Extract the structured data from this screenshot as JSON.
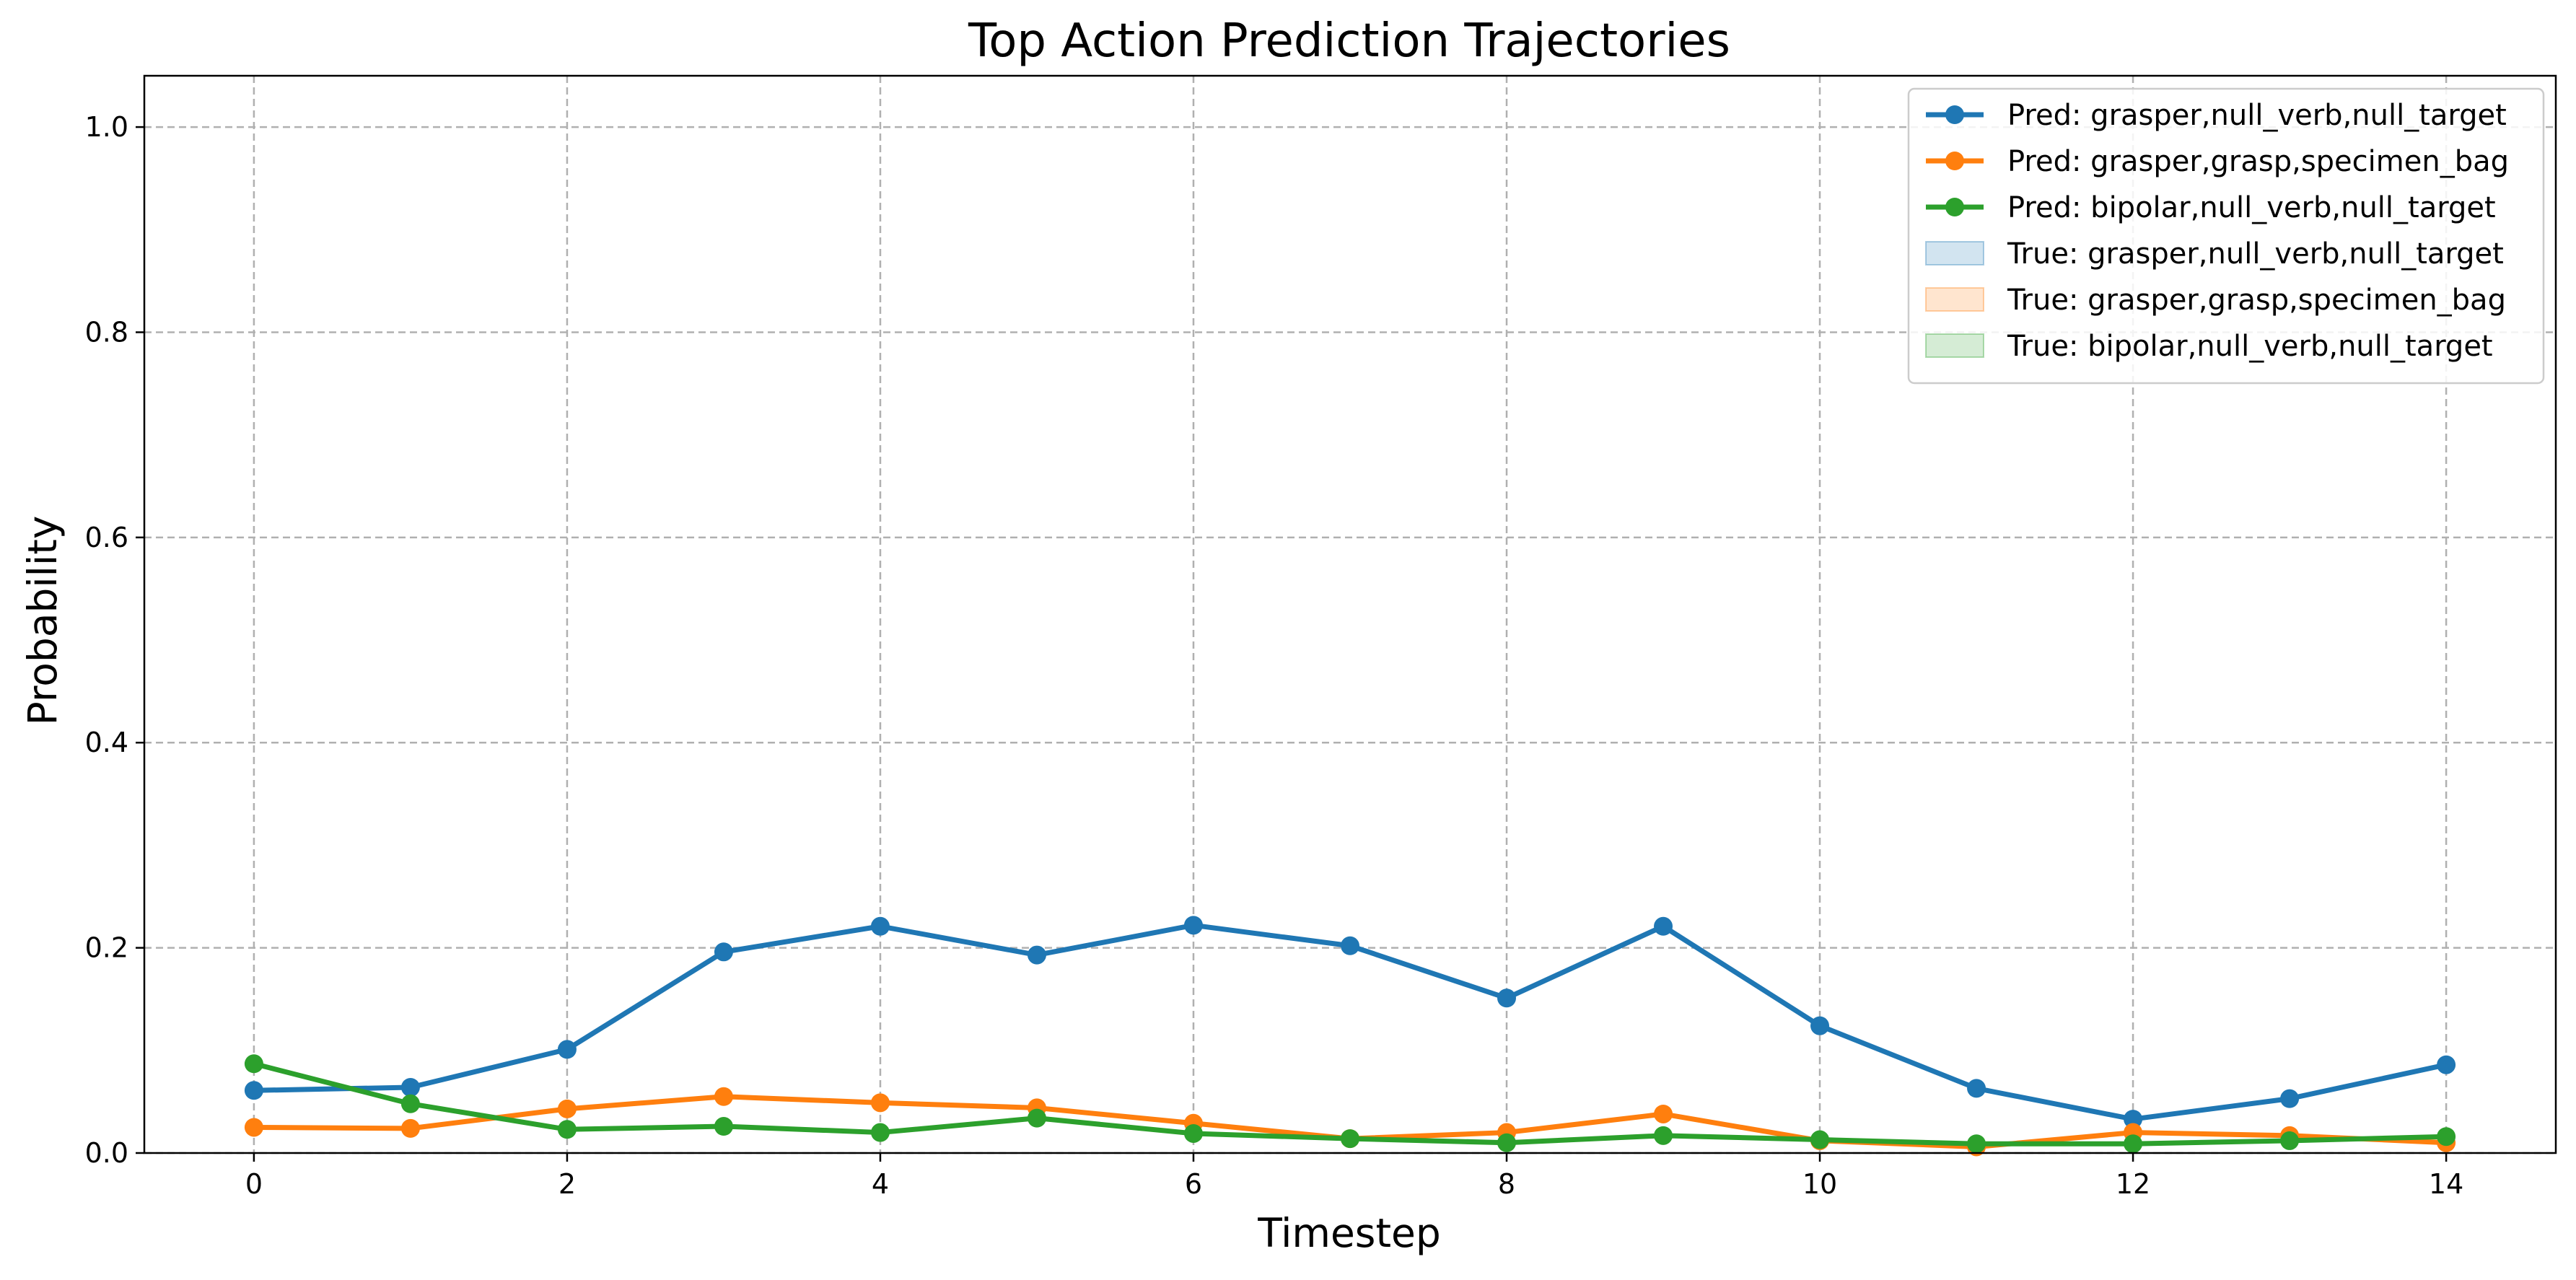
{
  "chart_data": {
    "type": "line",
    "title": "Top Action Prediction Trajectories",
    "xlabel": "Timestep",
    "ylabel": "Probability",
    "xlim": [
      -0.7,
      14.7
    ],
    "ylim": [
      0.0,
      1.05
    ],
    "xticks": [
      0,
      2,
      4,
      6,
      8,
      10,
      12,
      14
    ],
    "yticks": [
      0.0,
      0.2,
      0.4,
      0.6,
      0.8,
      1.0
    ],
    "ytick_labels": [
      "0.0",
      "0.2",
      "0.4",
      "0.6",
      "0.8",
      "1.0"
    ],
    "grid": true,
    "legend_position": "top-right",
    "x": [
      0,
      1,
      2,
      3,
      4,
      5,
      6,
      7,
      8,
      9,
      10,
      11,
      12,
      13,
      14
    ],
    "series": [
      {
        "name": "Pred: grasper,null_verb,null_target",
        "color": "#1f77b4",
        "marker": "circle",
        "values": [
          0.061,
          0.064,
          0.101,
          0.196,
          0.221,
          0.193,
          0.222,
          0.202,
          0.151,
          0.221,
          0.124,
          0.063,
          0.033,
          0.053,
          0.086
        ]
      },
      {
        "name": "Pred: grasper,grasp,specimen_bag",
        "color": "#ff7f0e",
        "marker": "circle",
        "values": [
          0.025,
          0.024,
          0.043,
          0.055,
          0.049,
          0.044,
          0.029,
          0.014,
          0.02,
          0.038,
          0.012,
          0.006,
          0.02,
          0.017,
          0.01
        ]
      },
      {
        "name": "Pred: bipolar,null_verb,null_target",
        "color": "#2ca02c",
        "marker": "circle",
        "values": [
          0.087,
          0.048,
          0.023,
          0.026,
          0.02,
          0.034,
          0.019,
          0.014,
          0.01,
          0.017,
          0.013,
          0.009,
          0.009,
          0.012,
          0.016
        ]
      }
    ],
    "true_legend_entries": [
      {
        "name": "True: grasper,null_verb,null_target",
        "color": "#1f77b4"
      },
      {
        "name": "True: grasper,grasp,specimen_bag",
        "color": "#ff7f0e"
      },
      {
        "name": "True: bipolar,null_verb,null_target",
        "color": "#2ca02c"
      }
    ]
  }
}
